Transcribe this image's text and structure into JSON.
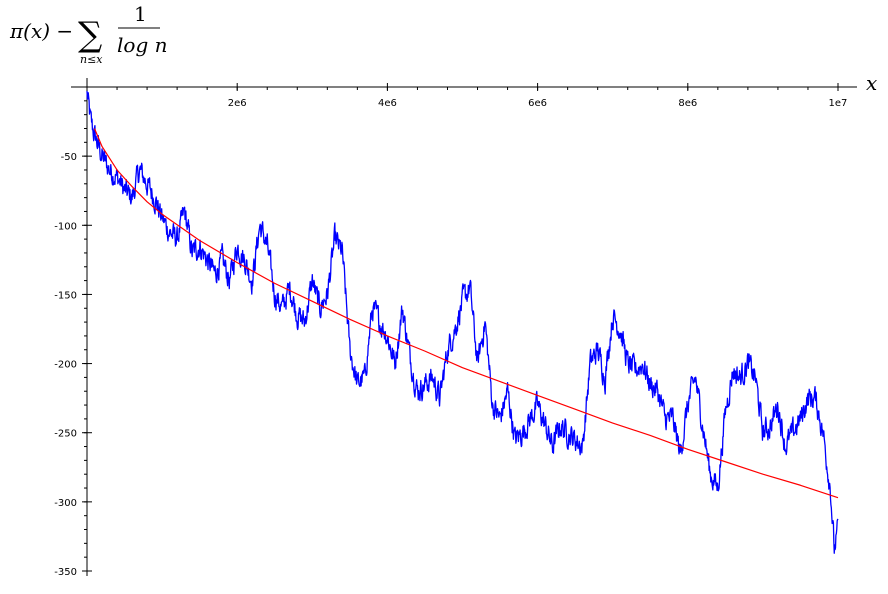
{
  "chart_data": {
    "type": "line",
    "title": "",
    "xlabel": "x",
    "ylabel": "π(x) − Σ_{n≤x} 1/log n",
    "ylabel_parts": {
      "pi_x": "π(x) −",
      "sigma": "∑",
      "sub": "n≤x",
      "numerator": "1",
      "denominator": "log n"
    },
    "xlim": [
      0,
      10000000
    ],
    "ylim": [
      -350,
      0
    ],
    "x_ticks": [
      {
        "value": 2000000,
        "label": "2e6"
      },
      {
        "value": 4000000,
        "label": "4e6"
      },
      {
        "value": 6000000,
        "label": "6e6"
      },
      {
        "value": 8000000,
        "label": "8e6"
      },
      {
        "value": 10000000,
        "label": "1e7"
      }
    ],
    "y_ticks": [
      {
        "value": -50,
        "label": "-50"
      },
      {
        "value": -100,
        "label": "-100"
      },
      {
        "value": -150,
        "label": "-150"
      },
      {
        "value": -200,
        "label": "-200"
      },
      {
        "value": -250,
        "label": "-250"
      },
      {
        "value": -300,
        "label": "-300"
      },
      {
        "value": -350,
        "label": "-350"
      }
    ],
    "x_minor_step": 400000,
    "y_minor_step": 10,
    "grid": false,
    "legend": "none",
    "series": [
      {
        "color": "#0000ff",
        "kind": "jagged",
        "x": [
          0,
          50000,
          100000,
          200000,
          300000,
          400000,
          500000,
          600000,
          700000,
          800000,
          900000,
          1000000,
          1100000,
          1200000,
          1300000,
          1400000,
          1500000,
          1600000,
          1700000,
          1800000,
          1900000,
          2000000,
          2100000,
          2200000,
          2300000,
          2400000,
          2500000,
          2600000,
          2700000,
          2800000,
          2900000,
          3000000,
          3100000,
          3200000,
          3300000,
          3400000,
          3500000,
          3600000,
          3700000,
          3800000,
          3900000,
          4000000,
          4100000,
          4200000,
          4300000,
          4400000,
          4500000,
          4600000,
          4700000,
          4800000,
          4900000,
          5000000,
          5100000,
          5200000,
          5300000,
          5400000,
          5500000,
          5600000,
          5700000,
          5800000,
          5900000,
          6000000,
          6100000,
          6200000,
          6300000,
          6400000,
          6500000,
          6600000,
          6700000,
          6800000,
          6900000,
          7000000,
          7100000,
          7200000,
          7300000,
          7400000,
          7500000,
          7600000,
          7700000,
          7800000,
          7900000,
          8000000,
          8100000,
          8200000,
          8300000,
          8400000,
          8500000,
          8600000,
          8700000,
          8800000,
          8900000,
          9000000,
          9100000,
          9200000,
          9300000,
          9400000,
          9500000,
          9600000,
          9700000,
          9800000,
          9900000,
          9950000,
          10000000
        ],
        "y": [
          -5,
          -25,
          -35,
          -50,
          -60,
          -65,
          -75,
          -80,
          -60,
          -70,
          -80,
          -95,
          -105,
          -110,
          -90,
          -120,
          -115,
          -125,
          -135,
          -125,
          -140,
          -115,
          -125,
          -140,
          -100,
          -115,
          -150,
          -160,
          -145,
          -165,
          -170,
          -140,
          -160,
          -150,
          -110,
          -120,
          -190,
          -215,
          -210,
          -160,
          -170,
          -180,
          -200,
          -160,
          -195,
          -220,
          -215,
          -210,
          -225,
          -190,
          -175,
          -155,
          -145,
          -200,
          -170,
          -230,
          -240,
          -220,
          -255,
          -250,
          -240,
          -230,
          -245,
          -260,
          -245,
          -250,
          -255,
          -260,
          -200,
          -190,
          -210,
          -165,
          -175,
          -200,
          -205,
          -200,
          -215,
          -220,
          -240,
          -240,
          -265,
          -230,
          -210,
          -245,
          -280,
          -290,
          -235,
          -205,
          -210,
          -200,
          -210,
          -250,
          -245,
          -230,
          -260,
          -250,
          -240,
          -225,
          -225,
          -250,
          -290,
          -335,
          -320
        ]
      },
      {
        "color": "#ff0000",
        "kind": "smooth",
        "x": [
          100000,
          200000,
          400000,
          600000,
          800000,
          1000000,
          1500000,
          2000000,
          2500000,
          3000000,
          3500000,
          4000000,
          4500000,
          5000000,
          5500000,
          6000000,
          6500000,
          7000000,
          7500000,
          8000000,
          8500000,
          9000000,
          9500000,
          10000000
        ],
        "y": [
          -30,
          -43,
          -60,
          -72,
          -83,
          -92,
          -111,
          -127,
          -142,
          -155,
          -168,
          -180,
          -191,
          -203,
          -213,
          -223,
          -233,
          -243,
          -252,
          -262,
          -271,
          -280,
          -288,
          -297
        ]
      }
    ]
  }
}
